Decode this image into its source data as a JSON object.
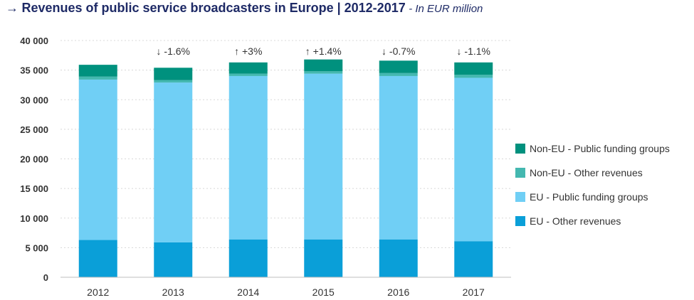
{
  "title": {
    "arrow": "→",
    "main": "Revenues of public service broadcasters in Europe | 2012-2017",
    "sub": "- In EUR million"
  },
  "chart_data": {
    "type": "bar",
    "stacked": true,
    "title": "Revenues of public service broadcasters in Europe | 2012-2017",
    "subtitle": "In EUR million",
    "categories": [
      "2012",
      "2013",
      "2014",
      "2015",
      "2016",
      "2017"
    ],
    "series": [
      {
        "name": "EU - Other revenues",
        "color": "#0a9fd8",
        "values": [
          6300,
          5900,
          6400,
          6400,
          6400,
          6100
        ]
      },
      {
        "name": "EU - Public funding groups",
        "color": "#70cff5",
        "values": [
          27100,
          27000,
          27600,
          28000,
          27600,
          27600
        ]
      },
      {
        "name": "Non-EU - Other revenues",
        "color": "#44b8b0",
        "values": [
          500,
          400,
          400,
          400,
          500,
          500
        ]
      },
      {
        "name": "Non-EU - Public funding groups",
        "color": "#00917e",
        "values": [
          2000,
          2100,
          1900,
          2000,
          2100,
          2100
        ]
      }
    ],
    "annotations": [
      "",
      "↓ -1.6%",
      "↑ +3%",
      "↑ +1.4%",
      "↓ -0.7%",
      "↓ -1.1%"
    ],
    "ylim": [
      0,
      40000
    ],
    "yticks": [
      0,
      5000,
      10000,
      15000,
      20000,
      25000,
      30000,
      35000,
      40000
    ],
    "ytick_labels": [
      "0",
      "5 000",
      "10 000",
      "15 000",
      "20 000",
      "25 000",
      "30 000",
      "35 000",
      "40 000"
    ],
    "legend_order": [
      "Non-EU - Public funding groups",
      "Non-EU - Other revenues",
      "EU - Public funding groups",
      "EU - Other revenues"
    ],
    "legend_position": "right",
    "grid": true
  }
}
